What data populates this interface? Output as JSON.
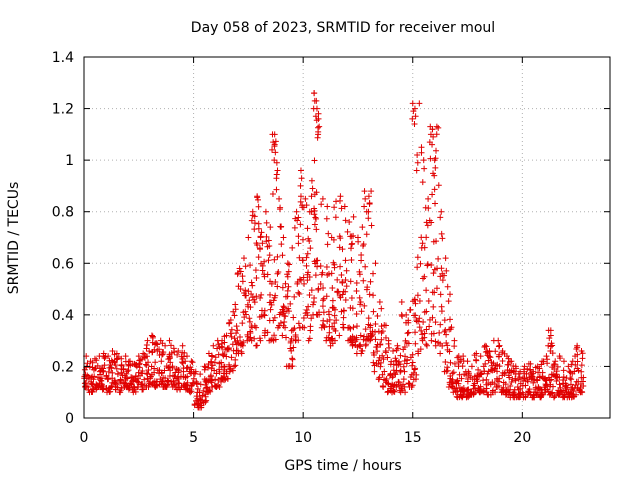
{
  "chart_data": {
    "type": "scatter",
    "title": "Day 058 of 2023, SRMTID for receiver moul",
    "xlabel": "GPS time / hours",
    "ylabel": "SRMTID / TECUs",
    "xlim": [
      0,
      24
    ],
    "ylim": [
      0,
      1.4
    ],
    "xticks": [
      0,
      5,
      10,
      15,
      20
    ],
    "xtick_labels": [
      "0",
      "5",
      "10",
      "15",
      "20"
    ],
    "yticks": [
      0,
      0.2,
      0.4,
      0.6,
      0.8,
      1.0,
      1.2,
      1.4
    ],
    "ytick_labels": [
      "0",
      "0.2",
      "0.4",
      "0.6",
      "0.8",
      "1",
      "1.2",
      "1.4"
    ],
    "grid": true,
    "marker": "+",
    "color": "#e00000",
    "series": [
      {
        "name": "SRMTID",
        "x": [
          0.0,
          0.2,
          0.4,
          0.6,
          0.8,
          1.0,
          1.2,
          1.4,
          1.6,
          1.8,
          2.0,
          2.2,
          2.4,
          2.6,
          2.8,
          3.0,
          3.2,
          3.4,
          3.6,
          3.8,
          4.0,
          4.2,
          4.4,
          4.6,
          4.8,
          5.0,
          5.2,
          5.4,
          5.6,
          5.8,
          6.0,
          6.2,
          6.4,
          6.6,
          6.8,
          7.0,
          7.2,
          7.4,
          7.6,
          7.8,
          8.0,
          8.2,
          8.4,
          8.6,
          8.8,
          9.0,
          9.2,
          9.4,
          9.6,
          9.8,
          10.0,
          10.2,
          10.4,
          10.6,
          10.8,
          11.0,
          11.2,
          11.4,
          11.6,
          11.8,
          12.0,
          12.2,
          12.4,
          12.6,
          12.8,
          13.0,
          13.2,
          13.4,
          13.6,
          13.8,
          14.0,
          14.2,
          14.4,
          14.6,
          14.8,
          15.0,
          15.2,
          15.4,
          15.6,
          15.8,
          16.0,
          16.2,
          16.4,
          16.6,
          16.8,
          17.0,
          17.2,
          17.4,
          17.6,
          17.8,
          18.0,
          18.2,
          18.4,
          18.6,
          18.8,
          19.0,
          19.2,
          19.4,
          19.6,
          19.8,
          20.0,
          20.2,
          20.4,
          20.6,
          20.8,
          21.0,
          21.2,
          21.4,
          21.6,
          21.8,
          22.0,
          22.2,
          22.4,
          22.6
        ],
        "low": [
          0.12,
          0.1,
          0.11,
          0.12,
          0.11,
          0.1,
          0.12,
          0.11,
          0.1,
          0.12,
          0.11,
          0.1,
          0.12,
          0.11,
          0.12,
          0.13,
          0.12,
          0.13,
          0.12,
          0.14,
          0.12,
          0.11,
          0.12,
          0.11,
          0.1,
          0.05,
          0.04,
          0.06,
          0.1,
          0.12,
          0.12,
          0.14,
          0.15,
          0.18,
          0.2,
          0.25,
          0.28,
          0.3,
          0.3,
          0.28,
          0.3,
          0.32,
          0.3,
          0.3,
          0.35,
          0.32,
          0.2,
          0.2,
          0.3,
          0.35,
          0.35,
          0.3,
          0.4,
          0.4,
          0.35,
          0.3,
          0.28,
          0.3,
          0.32,
          0.35,
          0.3,
          0.28,
          0.25,
          0.25,
          0.28,
          0.3,
          0.18,
          0.15,
          0.12,
          0.1,
          0.1,
          0.12,
          0.1,
          0.1,
          0.12,
          0.15,
          0.25,
          0.3,
          0.28,
          0.3,
          0.28,
          0.25,
          0.18,
          0.12,
          0.1,
          0.08,
          0.08,
          0.08,
          0.09,
          0.1,
          0.1,
          0.1,
          0.09,
          0.1,
          0.12,
          0.1,
          0.09,
          0.08,
          0.08,
          0.08,
          0.08,
          0.09,
          0.08,
          0.09,
          0.08,
          0.1,
          0.09,
          0.08,
          0.09,
          0.08,
          0.08,
          0.08,
          0.09,
          0.1
        ],
        "high": [
          0.24,
          0.22,
          0.23,
          0.24,
          0.25,
          0.24,
          0.26,
          0.25,
          0.23,
          0.24,
          0.22,
          0.21,
          0.24,
          0.25,
          0.3,
          0.32,
          0.29,
          0.3,
          0.28,
          0.3,
          0.27,
          0.26,
          0.28,
          0.24,
          0.22,
          0.18,
          0.17,
          0.2,
          0.25,
          0.28,
          0.3,
          0.3,
          0.32,
          0.38,
          0.44,
          0.58,
          0.62,
          0.7,
          0.8,
          0.86,
          0.72,
          0.8,
          0.74,
          1.1,
          0.85,
          0.7,
          0.6,
          0.66,
          0.8,
          0.86,
          0.85,
          0.8,
          1.26,
          1.18,
          0.85,
          0.82,
          0.7,
          0.84,
          0.86,
          0.82,
          0.76,
          0.78,
          0.7,
          0.74,
          0.8,
          0.88,
          0.6,
          0.45,
          0.36,
          0.3,
          0.26,
          0.28,
          0.45,
          0.4,
          0.42,
          0.46,
          1.22,
          1.0,
          0.85,
          1.12,
          1.13,
          0.8,
          0.62,
          0.48,
          0.3,
          0.24,
          0.24,
          0.22,
          0.2,
          0.25,
          0.24,
          0.28,
          0.26,
          0.3,
          0.3,
          0.26,
          0.24,
          0.22,
          0.2,
          0.18,
          0.2,
          0.21,
          0.18,
          0.2,
          0.22,
          0.24,
          0.34,
          0.22,
          0.24,
          0.22,
          0.2,
          0.22,
          0.28,
          0.26
        ],
        "peaks": [
          [
            8.6,
            1.1
          ],
          [
            8.7,
            1.06
          ],
          [
            8.8,
            0.99
          ],
          [
            10.5,
            1.26
          ],
          [
            10.6,
            1.23
          ],
          [
            10.7,
            1.16
          ],
          [
            10.4,
            0.92
          ],
          [
            9.9,
            0.96
          ],
          [
            15.0,
            1.22
          ],
          [
            15.1,
            1.2
          ],
          [
            15.2,
            1.02
          ],
          [
            15.8,
            1.13
          ],
          [
            15.9,
            1.12
          ],
          [
            16.0,
            1.0
          ],
          [
            21.2,
            0.34
          ],
          [
            21.3,
            0.32
          ],
          [
            12.8,
            0.88
          ],
          [
            13.0,
            0.86
          ]
        ]
      }
    ]
  }
}
